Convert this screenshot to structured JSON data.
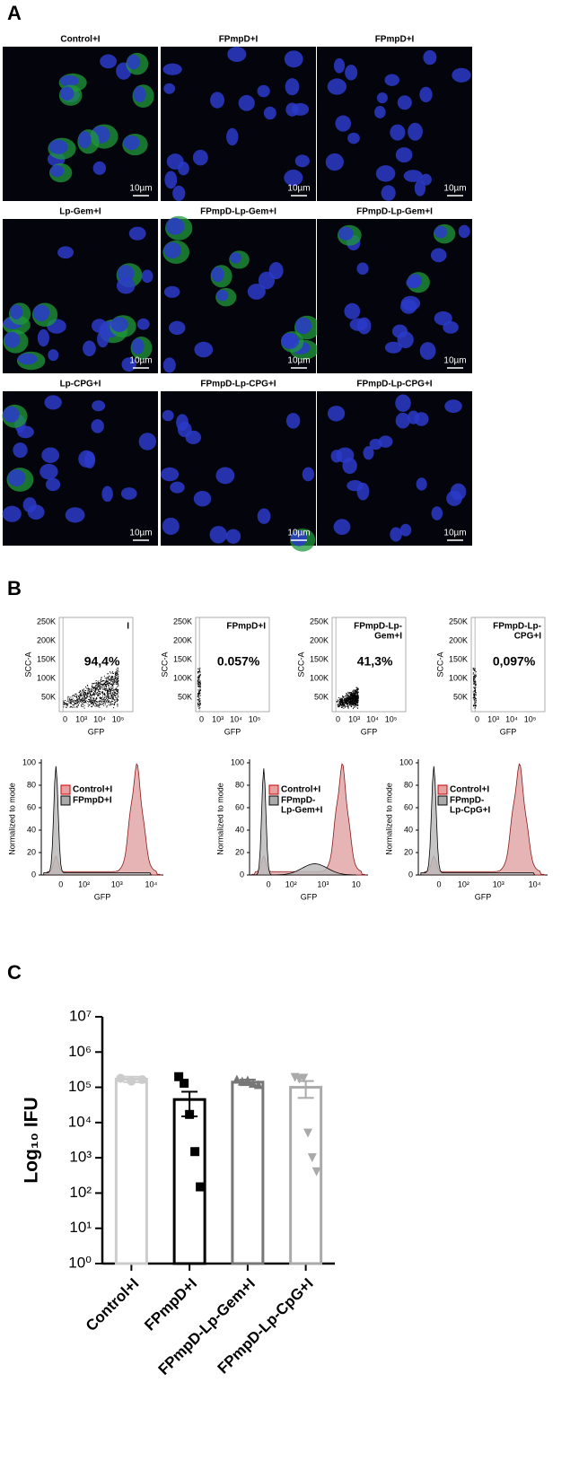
{
  "panel_a": {
    "label": "A",
    "images": [
      {
        "title": "Control+I",
        "scale": "10µm"
      },
      {
        "title": "FPmpD+I",
        "scale": "10µm"
      },
      {
        "title": "FPmpD+I",
        "scale": "10µm"
      },
      {
        "title": "Lp-Gem+I",
        "scale": "10µm"
      },
      {
        "title": "FPmpD-Lp-Gem+I",
        "scale": "10µm"
      },
      {
        "title": "FPmpD-Lp-Gem+I",
        "scale": "10µm"
      },
      {
        "title": "Lp-CPG+I",
        "scale": "10µm"
      },
      {
        "title": "FPmpD-Lp-CPG+I",
        "scale": "10µm"
      },
      {
        "title": "FPmpD-Lp-CPG+I",
        "scale": "10µm"
      }
    ]
  },
  "panel_b": {
    "label": "B",
    "scatter_y_label": "SCC-A",
    "scatter_x_label": "GFP",
    "scatter_yticks": [
      "250K",
      "200K",
      "150K",
      "100K",
      "50K"
    ],
    "scatter_xticks": [
      "0",
      "10³",
      "10⁴",
      "10⁵"
    ],
    "scatter_plots": [
      {
        "gate": [
          "I"
        ],
        "percent": "94,4%"
      },
      {
        "gate": [
          "FPmpD+I"
        ],
        "percent": "0.057%"
      },
      {
        "gate": [
          "FPmpD-Lp-",
          "Gem+I"
        ],
        "percent": "41,3%"
      },
      {
        "gate": [
          "FPmpD-Lp-",
          "CPG+I"
        ],
        "percent": "0,097%"
      }
    ],
    "hist_y_label": "Normalized to mode",
    "hist_x_label": "GFP",
    "hist_yticks": [
      0,
      20,
      40,
      60,
      80,
      100
    ],
    "histograms": [
      {
        "legend": [
          [
            "Control+I"
          ],
          [
            "FPmpD+I"
          ]
        ],
        "xticks": [
          "0",
          "10²",
          "10³",
          "10⁴"
        ]
      },
      {
        "legend": [
          [
            "Control+I"
          ],
          [
            "FPmpD-",
            "Lp-Gem+I"
          ]
        ],
        "xticks": [
          "0",
          "10²",
          "10³",
          "10"
        ]
      },
      {
        "legend": [
          [
            "Control+I"
          ],
          [
            "FPmpD-",
            "Lp-CpG+I"
          ]
        ],
        "xticks": [
          "0",
          "10²",
          "10³",
          "10⁴"
        ]
      }
    ]
  },
  "chart_data": {
    "type": "bar",
    "panel_label": "C",
    "ylabel": "Log₁₀ IFU",
    "log_scale": true,
    "categories": [
      "Control+I",
      "FPmpD+I",
      "FPmpD-Lp-Gem+I",
      "FPmpD-Lp-CpG+I"
    ],
    "values": [
      170000,
      45000,
      140000,
      100000
    ],
    "errors": [
      30000,
      30000,
      25000,
      50000
    ],
    "colors": [
      "#cccccc",
      "#000000",
      "#777777",
      "#aaaaaa"
    ],
    "point_shapes": [
      "circle",
      "square",
      "triangle",
      "triangle-down"
    ],
    "points": [
      [
        180000,
        150000,
        165000
      ],
      [
        200000,
        130000,
        17000,
        1500,
        150
      ],
      [
        170000,
        150000,
        160000,
        130000,
        120000
      ],
      [
        190000,
        170000,
        180000,
        5000,
        1000,
        400
      ]
    ],
    "ylim": [
      1,
      10000000
    ],
    "yticks": [
      {
        "value": 1,
        "label": "10⁰"
      },
      {
        "value": 10,
        "label": "10¹"
      },
      {
        "value": 100,
        "label": "10²"
      },
      {
        "value": 1000,
        "label": "10³"
      },
      {
        "value": 10000,
        "label": "10⁴"
      },
      {
        "value": 100000,
        "label": "10⁵"
      },
      {
        "value": 1000000,
        "label": "10⁶"
      },
      {
        "value": 10000000,
        "label": "10⁷"
      }
    ]
  }
}
